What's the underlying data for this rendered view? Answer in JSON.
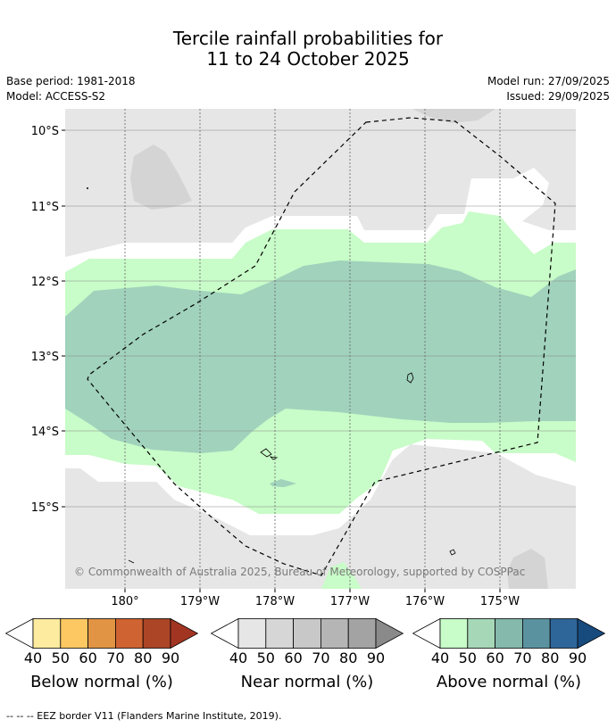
{
  "title": {
    "line1": "Tercile rainfall probabilities for",
    "line2": "11 to 24 October 2025"
  },
  "meta": {
    "base_period": "Base period: 1981-2018",
    "model": "Model: ACCESS-S2",
    "model_run": "Model run: 27/09/2025",
    "issued": "Issued: 29/09/2025"
  },
  "map": {
    "lat_labels": [
      "10°S",
      "11°S",
      "12°S",
      "13°S",
      "14°S",
      "15°S"
    ],
    "lon_labels": [
      "180°",
      "179°W",
      "178°W",
      "177°W",
      "176°W",
      "175°W"
    ],
    "copyright": "© Commonwealth of Australia 2025, Bureau of Meteorology, supported by COSPPac"
  },
  "colorbars": [
    {
      "label": "Below normal (%)",
      "ticks": [
        "40",
        "50",
        "60",
        "70",
        "80",
        "90"
      ],
      "colors": [
        "#ffffff",
        "#fdeb9f",
        "#fdc862",
        "#e19444",
        "#cf6331",
        "#ab4526",
        "#a23522"
      ]
    },
    {
      "label": "Near normal (%)",
      "ticks": [
        "40",
        "50",
        "60",
        "70",
        "80",
        "90"
      ],
      "colors": [
        "#ffffff",
        "#e6e6e6",
        "#d6d6d6",
        "#c8c8c8",
        "#b5b5b5",
        "#a3a3a3",
        "#8a8a8a"
      ]
    },
    {
      "label": "Above normal (%)",
      "ticks": [
        "40",
        "50",
        "60",
        "70",
        "80",
        "90"
      ],
      "colors": [
        "#ffffff",
        "#c8fcc8",
        "#a6d8b8",
        "#84b9ac",
        "#5b92a0",
        "#2f6699",
        "#174b7e"
      ]
    }
  ],
  "footnote": "--  --  -- EEZ border V11 (Flanders Marine Institute, 2019)."
}
